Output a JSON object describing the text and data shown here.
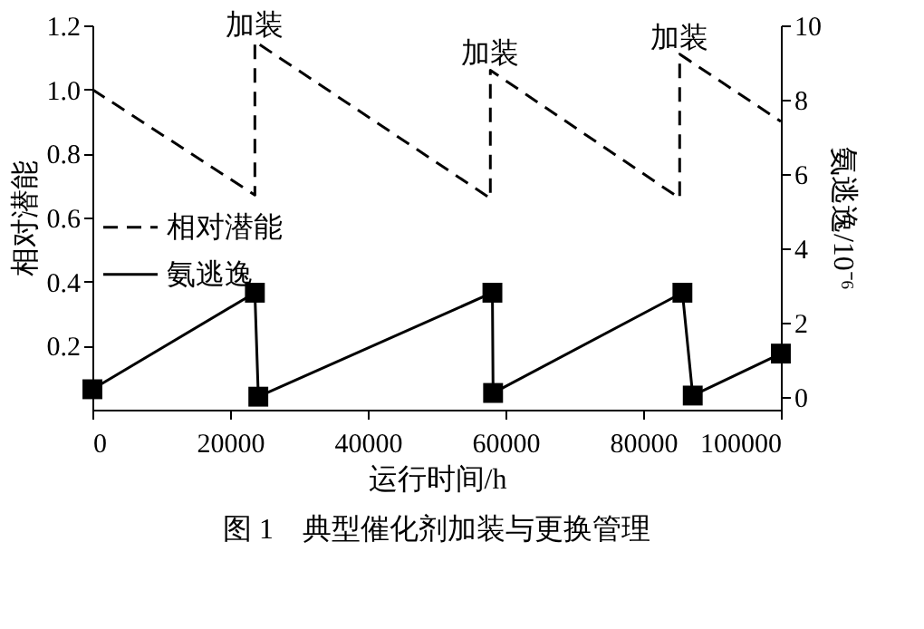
{
  "chart_data": {
    "type": "line",
    "title": "图 1　典型催化剂加装与更换管理",
    "xlabel": "运行时间/h",
    "ylabel": "相对潜能",
    "y2label": "氨逃逸/10⁻⁶",
    "xlim": [
      0,
      100000
    ],
    "xticks": [
      0,
      20000,
      40000,
      60000,
      80000,
      100000
    ],
    "ylim": [
      0,
      1.2
    ],
    "yticks": [
      0.2,
      0.4,
      0.6,
      0.8,
      {
        "value": 1,
        "label": "1.0"
      },
      1.2
    ],
    "y2lim": [
      -0.35,
      10
    ],
    "y2ticks": [
      0,
      2,
      4,
      6,
      8,
      10
    ],
    "grid": false,
    "legend": "left",
    "series": [
      {
        "name": "相对潜能",
        "color": "#000000",
        "line_style": "dashed",
        "marker": "none",
        "x": [
          0,
          23600,
          23600,
          57800,
          57800,
          85300,
          85300,
          100000
        ],
        "values": [
          1.0,
          0.67,
          1.15,
          0.66,
          1.06,
          0.66,
          1.11,
          0.9
        ]
      },
      {
        "name": "氨逃逸",
        "color": "#000000",
        "line_style": "solid",
        "marker": "square",
        "axis": "y2",
        "x": [
          0,
          23600,
          24100,
          58100,
          58200,
          85700,
          87200,
          100000
        ],
        "values": [
          0.2,
          2.8,
          0.0,
          2.8,
          0.1,
          2.8,
          0.03,
          1.16
        ]
      }
    ],
    "annotations": [
      {
        "text": "加装",
        "x": 23600,
        "y": 1.15
      },
      {
        "text": "加装",
        "x": 57800,
        "y": 1.06
      },
      {
        "text": "加装",
        "x": 85300,
        "y": 1.11
      }
    ]
  }
}
